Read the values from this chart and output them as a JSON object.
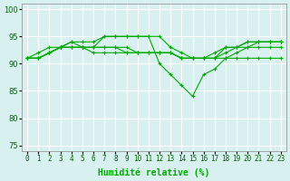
{
  "xlabel": "Humidité relative (%)",
  "background_color": "#d8f0f0",
  "grid_color": "#ffffff",
  "line_color": "#00aa00",
  "marker": "+",
  "xlim": [
    -0.5,
    23.5
  ],
  "ylim": [
    74,
    101
  ],
  "yticks": [
    75,
    80,
    85,
    90,
    95,
    100
  ],
  "xtick_labels": [
    "0",
    "1",
    "2",
    "3",
    "4",
    "5",
    "6",
    "7",
    "8",
    "9",
    "10",
    "11",
    "12",
    "13",
    "14",
    "15",
    "16",
    "17",
    "18",
    "19",
    "20",
    "21",
    "22",
    "23"
  ],
  "series": [
    [
      91,
      91,
      92,
      93,
      94,
      94,
      94,
      95,
      95,
      95,
      95,
      95,
      95,
      93,
      92,
      91,
      91,
      92,
      93,
      93,
      94,
      94,
      94,
      94
    ],
    [
      91,
      91,
      92,
      93,
      93,
      93,
      93,
      95,
      95,
      95,
      95,
      95,
      90,
      88,
      86,
      84,
      88,
      89,
      91,
      92,
      93,
      94,
      94,
      94
    ],
    [
      91,
      92,
      93,
      93,
      93,
      93,
      93,
      93,
      93,
      93,
      92,
      92,
      92,
      92,
      91,
      91,
      91,
      91,
      93,
      93,
      93,
      93,
      93,
      93
    ],
    [
      91,
      91,
      92,
      93,
      94,
      93,
      93,
      93,
      93,
      92,
      92,
      92,
      92,
      92,
      91,
      91,
      91,
      91,
      91,
      91,
      91,
      91,
      91,
      91
    ],
    [
      91,
      91,
      92,
      93,
      93,
      93,
      92,
      92,
      92,
      92,
      92,
      92,
      92,
      92,
      91,
      91,
      91,
      91,
      92,
      93,
      94,
      94,
      94,
      94
    ]
  ]
}
